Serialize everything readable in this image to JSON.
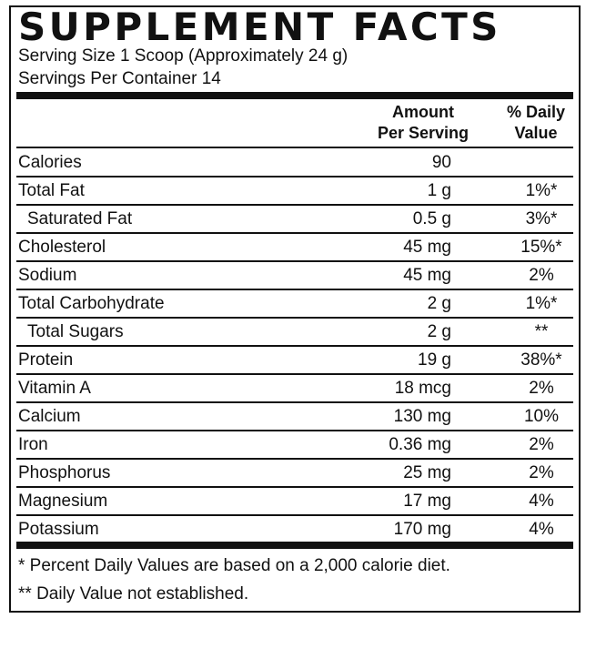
{
  "title": "SUPPLEMENT FACTS",
  "serving_size": "Serving Size 1 Scoop (Approximately 24 g)",
  "servings_per_container": "Servings Per Container 14",
  "header": {
    "amount_line1": "Amount",
    "amount_line2": "Per Serving",
    "dv_line1": "% Daily",
    "dv_line2": "Value"
  },
  "rows": [
    {
      "name": "Calories",
      "amount": "90",
      "dv": "",
      "indent": false
    },
    {
      "name": "Total Fat",
      "amount": "1 g",
      "dv": "1%*",
      "indent": false
    },
    {
      "name": "Saturated Fat",
      "amount": "0.5 g",
      "dv": "3%*",
      "indent": true
    },
    {
      "name": "Cholesterol",
      "amount": "45 mg",
      "dv": "15%*",
      "indent": false
    },
    {
      "name": "Sodium",
      "amount": "45 mg",
      "dv": "2%",
      "indent": false
    },
    {
      "name": "Total Carbohydrate",
      "amount": "2 g",
      "dv": "1%*",
      "indent": false
    },
    {
      "name": "Total Sugars",
      "amount": "2 g",
      "dv": "**",
      "indent": true
    },
    {
      "name": "Protein",
      "amount": "19 g",
      "dv": "38%*",
      "indent": false
    },
    {
      "name": "Vitamin A",
      "amount": "18 mcg",
      "dv": "2%",
      "indent": false
    },
    {
      "name": "Calcium",
      "amount": "130 mg",
      "dv": "10%",
      "indent": false
    },
    {
      "name": "Iron",
      "amount": "0.36 mg",
      "dv": "2%",
      "indent": false
    },
    {
      "name": "Phosphorus",
      "amount": "25 mg",
      "dv": "2%",
      "indent": false
    },
    {
      "name": "Magnesium",
      "amount": "17 mg",
      "dv": "4%",
      "indent": false
    },
    {
      "name": "Potassium",
      "amount": "170 mg",
      "dv": "4%",
      "indent": false
    }
  ],
  "footnotes": [
    " *  Percent Daily Values are based on a 2,000 calorie diet.",
    "**  Daily Value not established."
  ]
}
